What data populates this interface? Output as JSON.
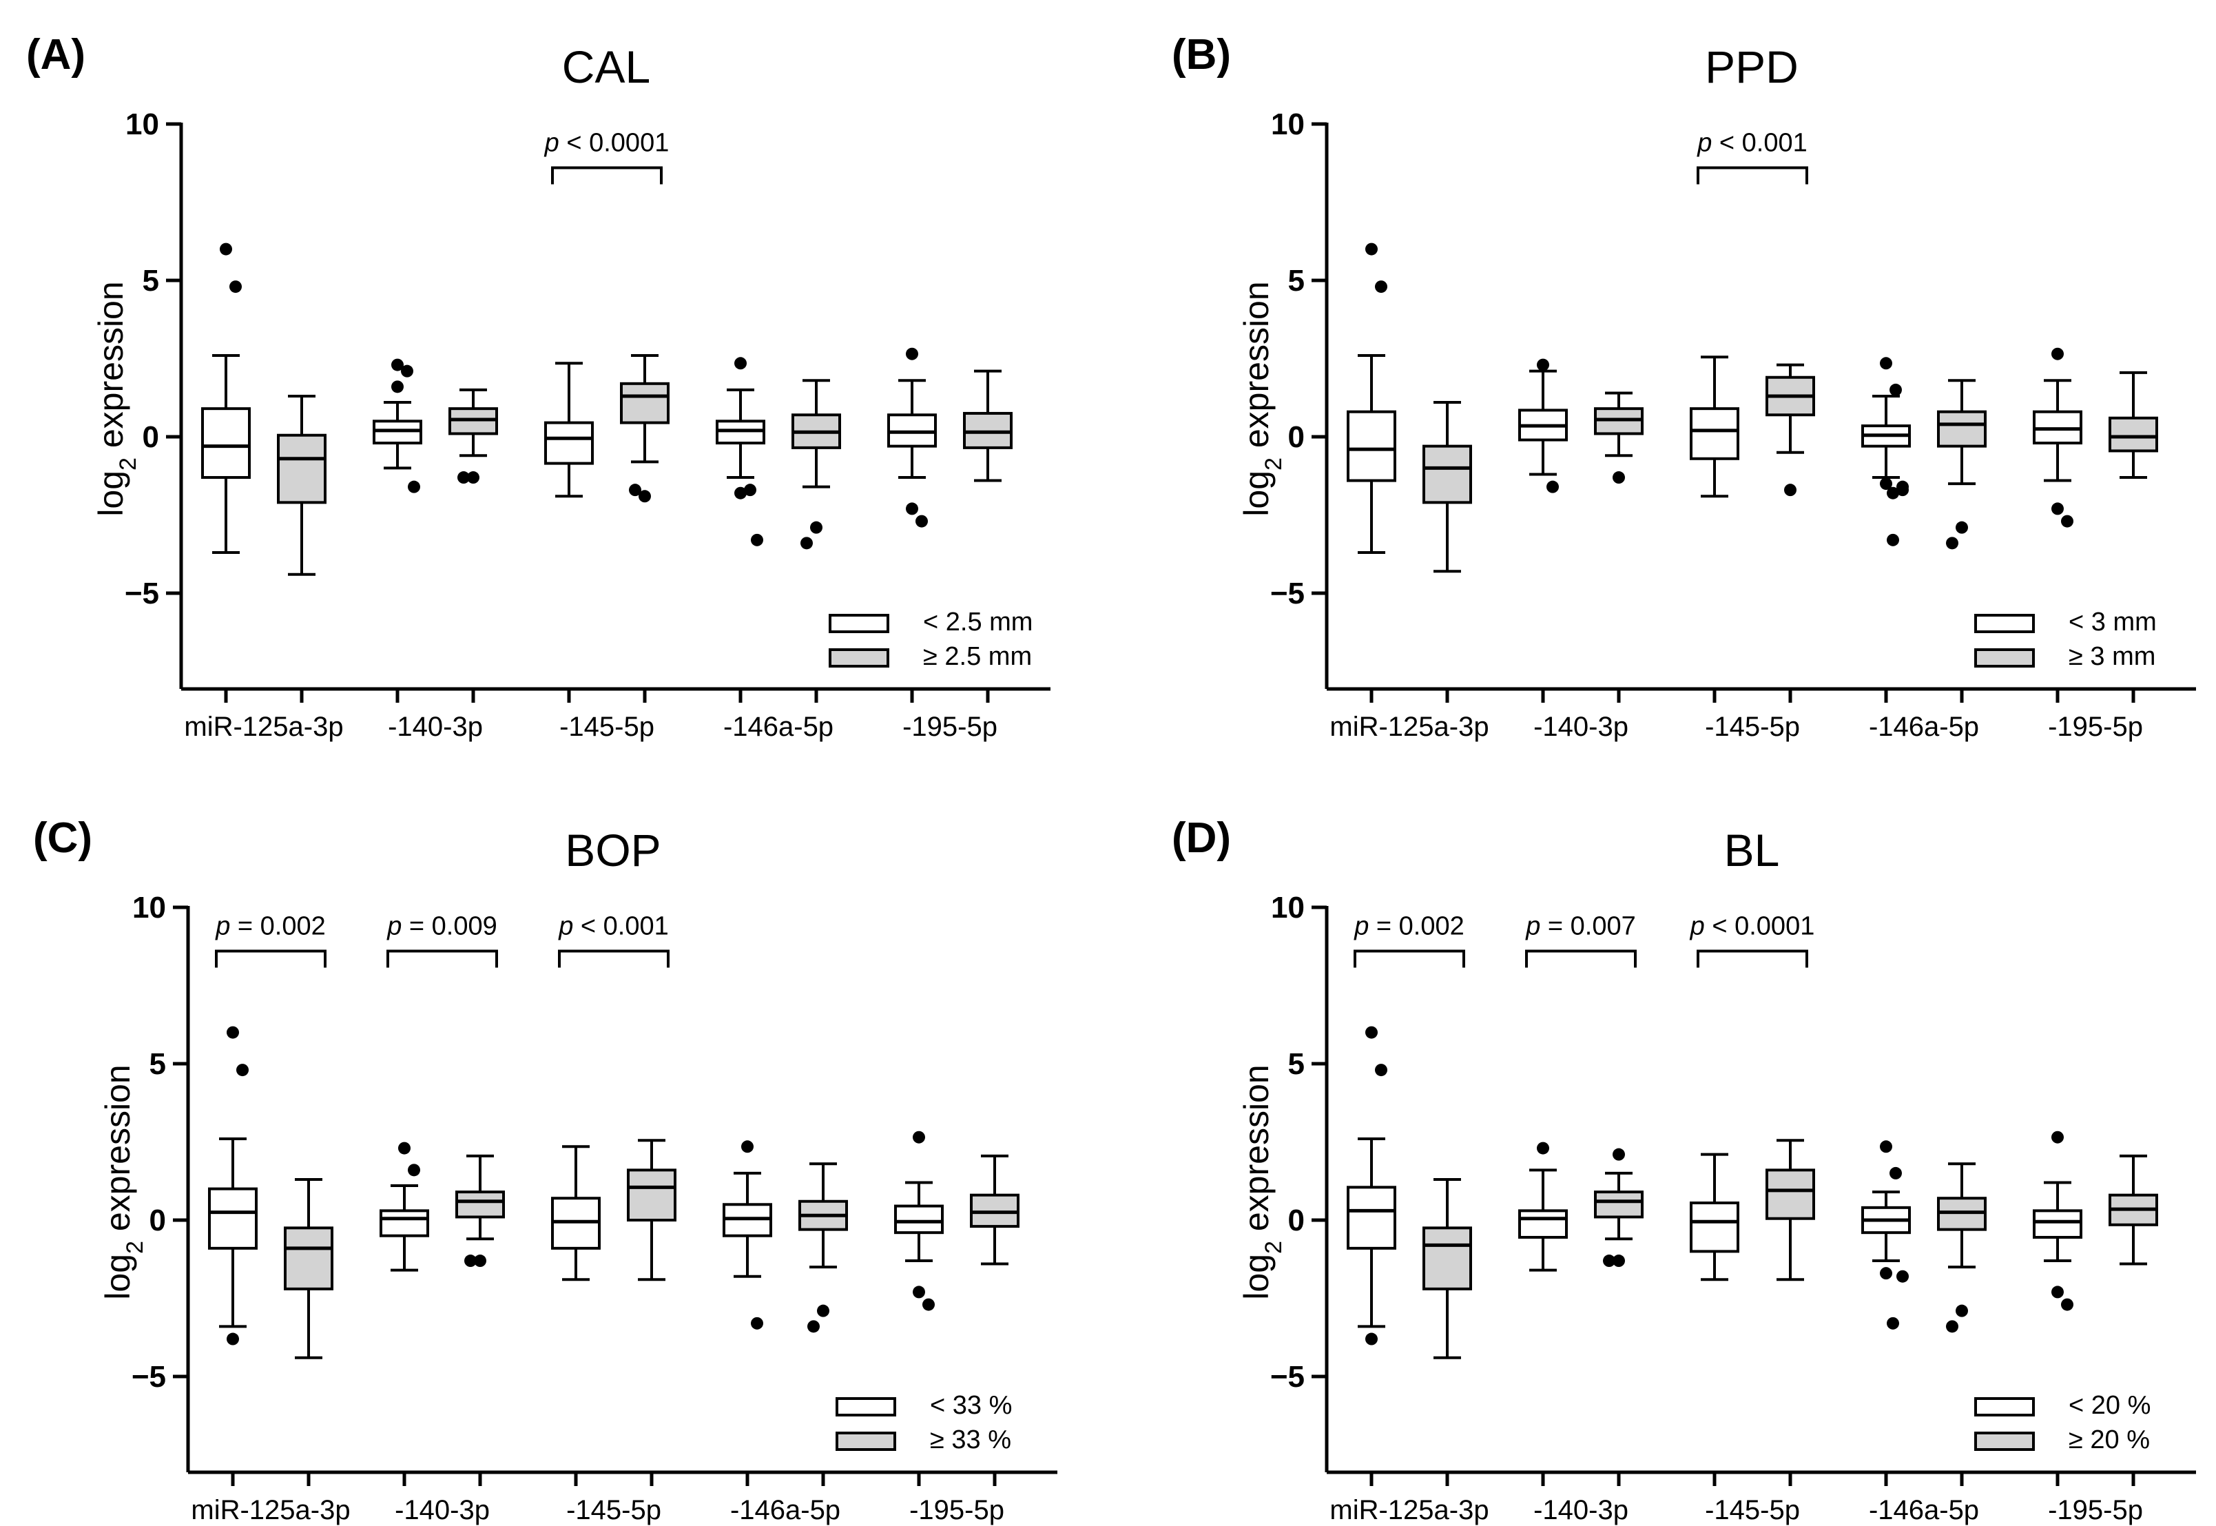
{
  "chart_data": [
    {
      "type": "box",
      "panel": "(A)",
      "title": "CAL",
      "ylabel": "expression",
      "ylabel_prefix": "log",
      "ylabel_sub": "2",
      "ylim": [
        -8,
        10
      ],
      "yticks": [
        {
          "v": 10,
          "t": "10"
        },
        {
          "v": 5,
          "t": "5"
        },
        {
          "v": 0,
          "t": "0"
        },
        {
          "v": -5,
          "t": "−5"
        }
      ],
      "categories": [
        "miR-125a-3p",
        "-140-3p",
        "-145-5p",
        "-146a-5p",
        "-195-5p"
      ],
      "legend": [
        {
          "label": "< 2.5 mm",
          "fill": "#ffffff"
        },
        {
          "label": "≥ 2.5 mm",
          "fill": "#d3d3d3"
        }
      ],
      "groups": [
        [
          {
            "min": -3.7,
            "q1": -1.3,
            "med": -0.3,
            "q3": 0.9,
            "max": 2.6,
            "out": [
              6.0,
              4.8
            ]
          },
          {
            "min": -4.4,
            "q1": -2.1,
            "med": -0.7,
            "q3": 0.05,
            "max": 1.3,
            "out": []
          }
        ],
        [
          {
            "min": -1.0,
            "q1": -0.2,
            "med": 0.2,
            "q3": 0.5,
            "max": 1.1,
            "out": [
              2.3,
              2.1,
              1.6,
              -1.6
            ]
          },
          {
            "min": -0.6,
            "q1": 0.1,
            "med": 0.55,
            "q3": 0.9,
            "max": 1.5,
            "out": [
              -1.3,
              -1.3
            ]
          }
        ],
        [
          {
            "min": -1.9,
            "q1": -0.85,
            "med": -0.05,
            "q3": 0.45,
            "max": 2.35,
            "out": []
          },
          {
            "min": -0.8,
            "q1": 0.45,
            "med": 1.3,
            "q3": 1.7,
            "max": 2.6,
            "out": [
              -1.9,
              -1.7
            ]
          }
        ],
        [
          {
            "min": -1.3,
            "q1": -0.2,
            "med": 0.2,
            "q3": 0.5,
            "max": 1.5,
            "out": [
              2.35,
              -1.7,
              -1.8,
              -3.3
            ]
          },
          {
            "min": -1.6,
            "q1": -0.35,
            "med": 0.15,
            "q3": 0.7,
            "max": 1.8,
            "out": [
              -2.9,
              -3.4
            ]
          }
        ],
        [
          {
            "min": -1.3,
            "q1": -0.3,
            "med": 0.15,
            "q3": 0.7,
            "max": 1.8,
            "out": [
              2.65,
              -2.7,
              -2.3
            ]
          },
          {
            "min": -1.4,
            "q1": -0.35,
            "med": 0.15,
            "q3": 0.75,
            "max": 2.1,
            "out": []
          }
        ]
      ],
      "sig": [
        {
          "group": 2,
          "y": 8.6,
          "italic": "p",
          "rest": " < 0.0001"
        }
      ]
    },
    {
      "type": "box",
      "panel": "(B)",
      "title": "PPD",
      "ylabel": "expression",
      "ylabel_prefix": "log",
      "ylabel_sub": "2",
      "ylim": [
        -8,
        10
      ],
      "yticks": [
        {
          "v": 10,
          "t": "10"
        },
        {
          "v": 5,
          "t": "5"
        },
        {
          "v": 0,
          "t": "0"
        },
        {
          "v": -5,
          "t": "−5"
        }
      ],
      "categories": [
        "miR-125a-3p",
        "-140-3p",
        "-145-5p",
        "-146a-5p",
        "-195-5p"
      ],
      "legend": [
        {
          "label": "< 3 mm",
          "fill": "#ffffff"
        },
        {
          "label": "≥ 3 mm",
          "fill": "#d3d3d3"
        }
      ],
      "groups": [
        [
          {
            "min": -3.7,
            "q1": -1.4,
            "med": -0.4,
            "q3": 0.8,
            "max": 2.6,
            "out": [
              6.0,
              4.8
            ]
          },
          {
            "min": -4.3,
            "q1": -2.1,
            "med": -1.0,
            "q3": -0.3,
            "max": 1.1,
            "out": []
          }
        ],
        [
          {
            "min": -1.2,
            "q1": -0.1,
            "med": 0.35,
            "q3": 0.85,
            "max": 2.1,
            "out": [
              2.3,
              -1.6
            ]
          },
          {
            "min": -0.6,
            "q1": 0.1,
            "med": 0.55,
            "q3": 0.9,
            "max": 1.4,
            "out": [
              -1.3
            ]
          }
        ],
        [
          {
            "min": -1.9,
            "q1": -0.7,
            "med": 0.2,
            "q3": 0.9,
            "max": 2.55,
            "out": []
          },
          {
            "min": -0.5,
            "q1": 0.7,
            "med": 1.3,
            "q3": 1.9,
            "max": 2.3,
            "out": [
              -1.7
            ]
          }
        ],
        [
          {
            "min": -1.3,
            "q1": -0.3,
            "med": 0.05,
            "q3": 0.35,
            "max": 1.3,
            "out": [
              2.35,
              1.5,
              -1.5,
              -1.7,
              -1.8,
              -1.6,
              -3.3
            ]
          },
          {
            "min": -1.5,
            "q1": -0.3,
            "med": 0.4,
            "q3": 0.8,
            "max": 1.8,
            "out": [
              -2.9,
              -3.4
            ]
          }
        ],
        [
          {
            "min": -1.4,
            "q1": -0.2,
            "med": 0.25,
            "q3": 0.8,
            "max": 1.8,
            "out": [
              2.65,
              -2.7,
              -2.3
            ]
          },
          {
            "min": -1.3,
            "q1": -0.45,
            "med": 0.0,
            "q3": 0.6,
            "max": 2.05,
            "out": []
          }
        ]
      ],
      "sig": [
        {
          "group": 2,
          "y": 8.6,
          "italic": "p",
          "rest": " < 0.001"
        }
      ]
    },
    {
      "type": "box",
      "panel": "(C)",
      "title": "BOP",
      "ylabel": "expression",
      "ylabel_prefix": "log",
      "ylabel_sub": "2",
      "ylim": [
        -8,
        10
      ],
      "yticks": [
        {
          "v": 10,
          "t": "10"
        },
        {
          "v": 5,
          "t": "5"
        },
        {
          "v": 0,
          "t": "0"
        },
        {
          "v": -5,
          "t": "−5"
        }
      ],
      "categories": [
        "miR-125a-3p",
        "-140-3p",
        "-145-5p",
        "-146a-5p",
        "-195-5p"
      ],
      "legend": [
        {
          "label": "< 33 %",
          "fill": "#ffffff"
        },
        {
          "label": "≥ 33 %",
          "fill": "#d3d3d3"
        }
      ],
      "groups": [
        [
          {
            "min": -3.4,
            "q1": -0.9,
            "med": 0.25,
            "q3": 1.0,
            "max": 2.6,
            "out": [
              6.0,
              4.8,
              -3.8
            ]
          },
          {
            "min": -4.4,
            "q1": -2.2,
            "med": -0.9,
            "q3": -0.25,
            "max": 1.3,
            "out": []
          }
        ],
        [
          {
            "min": -1.6,
            "q1": -0.5,
            "med": 0.05,
            "q3": 0.3,
            "max": 1.1,
            "out": [
              2.3,
              1.6
            ]
          },
          {
            "min": -0.6,
            "q1": 0.1,
            "med": 0.6,
            "q3": 0.9,
            "max": 2.05,
            "out": [
              -1.3,
              -1.3
            ]
          }
        ],
        [
          {
            "min": -1.9,
            "q1": -0.9,
            "med": -0.05,
            "q3": 0.7,
            "max": 2.35,
            "out": []
          },
          {
            "min": -1.9,
            "q1": 0.0,
            "med": 1.05,
            "q3": 1.6,
            "max": 2.55,
            "out": []
          }
        ],
        [
          {
            "min": -1.8,
            "q1": -0.5,
            "med": 0.05,
            "q3": 0.5,
            "max": 1.5,
            "out": [
              2.35,
              -3.3
            ]
          },
          {
            "min": -1.5,
            "q1": -0.3,
            "med": 0.15,
            "q3": 0.6,
            "max": 1.8,
            "out": [
              -2.9,
              -3.4
            ]
          }
        ],
        [
          {
            "min": -1.3,
            "q1": -0.4,
            "med": -0.05,
            "q3": 0.45,
            "max": 1.2,
            "out": [
              2.65,
              -2.7,
              -2.3
            ]
          },
          {
            "min": -1.4,
            "q1": -0.2,
            "med": 0.25,
            "q3": 0.8,
            "max": 2.05,
            "out": []
          }
        ]
      ],
      "sig": [
        {
          "group": 0,
          "y": 8.6,
          "italic": "p",
          "rest": " = 0.002"
        },
        {
          "group": 1,
          "y": 8.6,
          "italic": "p",
          "rest": " = 0.009"
        },
        {
          "group": 2,
          "y": 8.6,
          "italic": "p",
          "rest": " < 0.001"
        }
      ]
    },
    {
      "type": "box",
      "panel": "(D)",
      "title": "BL",
      "ylabel": "expression",
      "ylabel_prefix": "log",
      "ylabel_sub": "2",
      "ylim": [
        -8,
        10
      ],
      "yticks": [
        {
          "v": 10,
          "t": "10"
        },
        {
          "v": 5,
          "t": "5"
        },
        {
          "v": 0,
          "t": "0"
        },
        {
          "v": -5,
          "t": "−5"
        }
      ],
      "categories": [
        "miR-125a-3p",
        "-140-3p",
        "-145-5p",
        "-146a-5p",
        "-195-5p"
      ],
      "legend": [
        {
          "label": "< 20 %",
          "fill": "#ffffff"
        },
        {
          "label": "≥ 20 %",
          "fill": "#d3d3d3"
        }
      ],
      "groups": [
        [
          {
            "min": -3.4,
            "q1": -0.9,
            "med": 0.3,
            "q3": 1.05,
            "max": 2.6,
            "out": [
              6.0,
              4.8,
              -3.8
            ]
          },
          {
            "min": -4.4,
            "q1": -2.2,
            "med": -0.8,
            "q3": -0.25,
            "max": 1.3,
            "out": []
          }
        ],
        [
          {
            "min": -1.6,
            "q1": -0.55,
            "med": 0.05,
            "q3": 0.3,
            "max": 1.6,
            "out": [
              2.3
            ]
          },
          {
            "min": -0.6,
            "q1": 0.1,
            "med": 0.6,
            "q3": 0.9,
            "max": 1.5,
            "out": [
              2.1,
              -1.3,
              -1.3
            ]
          }
        ],
        [
          {
            "min": -1.9,
            "q1": -1.0,
            "med": -0.05,
            "q3": 0.55,
            "max": 2.1,
            "out": []
          },
          {
            "min": -1.9,
            "q1": 0.05,
            "med": 0.95,
            "q3": 1.6,
            "max": 2.55,
            "out": []
          }
        ],
        [
          {
            "min": -1.3,
            "q1": -0.4,
            "med": 0.0,
            "q3": 0.4,
            "max": 0.9,
            "out": [
              2.35,
              1.5,
              -1.7,
              -1.8,
              -3.3
            ]
          },
          {
            "min": -1.5,
            "q1": -0.3,
            "med": 0.25,
            "q3": 0.7,
            "max": 1.8,
            "out": [
              -2.9,
              -3.4
            ]
          }
        ],
        [
          {
            "min": -1.3,
            "q1": -0.55,
            "med": -0.05,
            "q3": 0.3,
            "max": 1.2,
            "out": [
              2.65,
              -2.7,
              -2.3
            ]
          },
          {
            "min": -1.4,
            "q1": -0.15,
            "med": 0.35,
            "q3": 0.8,
            "max": 2.05,
            "out": []
          }
        ]
      ],
      "sig": [
        {
          "group": 0,
          "y": 8.6,
          "italic": "p",
          "rest": " = 0.002"
        },
        {
          "group": 1,
          "y": 8.6,
          "italic": "p",
          "rest": " = 0.007"
        },
        {
          "group": 2,
          "y": 8.6,
          "italic": "p",
          "rest": " < 0.0001"
        }
      ]
    }
  ]
}
